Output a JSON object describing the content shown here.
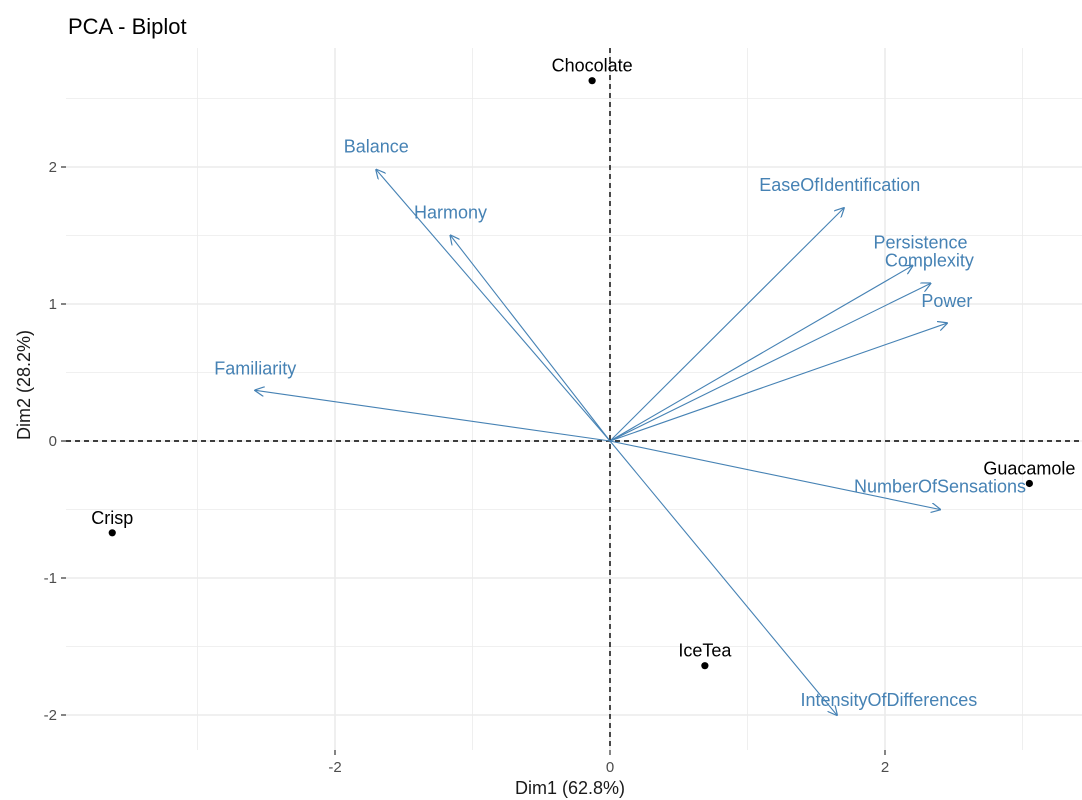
{
  "chart_data": {
    "type": "scatter",
    "title": "PCA - Biplot",
    "xlabel": "Dim1 (62.8%)",
    "ylabel": "Dim2 (28.2%)",
    "xlim": [
      -3.8,
      3.4
    ],
    "ylim": [
      -2.2,
      2.9
    ],
    "x_ticks": [
      -2,
      0,
      2
    ],
    "x_tick_labels": [
      "-2",
      "0",
      "2"
    ],
    "y_ticks": [
      -2,
      -1,
      0,
      1,
      2
    ],
    "y_tick_labels": [
      "-2",
      "-1",
      "0",
      "1",
      "2"
    ],
    "grid": true,
    "reference_lines": {
      "x": 0,
      "y": 0,
      "style": "dashed"
    },
    "individuals": [
      {
        "name": "Chocolate",
        "x": -0.13,
        "y": 2.63
      },
      {
        "name": "Guacamole",
        "x": 3.05,
        "y": -0.31
      },
      {
        "name": "Crisp",
        "x": -3.62,
        "y": -0.67
      },
      {
        "name": "IceTea",
        "x": 0.69,
        "y": -1.64
      }
    ],
    "variables": [
      {
        "name": "Balance",
        "x": -1.7,
        "y": 1.98
      },
      {
        "name": "Harmony",
        "x": -1.16,
        "y": 1.5
      },
      {
        "name": "EaseOfIdentification",
        "x": 1.7,
        "y": 1.7
      },
      {
        "name": "Persistence",
        "x": 2.2,
        "y": 1.28
      },
      {
        "name": "Complexity",
        "x": 2.33,
        "y": 1.15
      },
      {
        "name": "Power",
        "x": 2.45,
        "y": 0.86
      },
      {
        "name": "Familiarity",
        "x": -2.58,
        "y": 0.37
      },
      {
        "name": "NumberOfSensations",
        "x": 2.4,
        "y": -0.5
      },
      {
        "name": "IntensityOfDifferences",
        "x": 1.65,
        "y": -2.0
      }
    ],
    "colors": {
      "individuals": "#000000",
      "variables": "#4682b4",
      "grid": "#ebebeb",
      "reference": "#000000"
    }
  }
}
